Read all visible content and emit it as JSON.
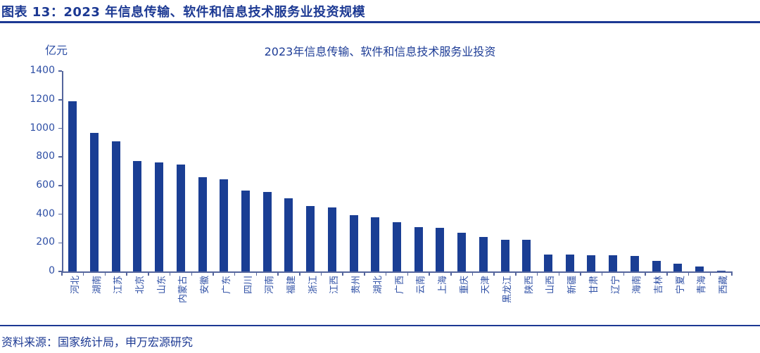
{
  "header": {
    "title": "图表 13：2023 年信息传输、软件和信息技术服务业投资规模"
  },
  "footer": {
    "source": "资料来源：国家统计局，申万宏源研究"
  },
  "colors": {
    "accent_navy": "#1c3993",
    "bar_fill": "#1a3e94",
    "axis_line": "#54659c",
    "tick_label": "#2e4fa5"
  },
  "chart_data": {
    "type": "bar",
    "title": "2023年信息传输、软件和信息技术服务业投资",
    "unit_label": "亿元",
    "xlabel": "",
    "ylabel": "亿元",
    "ylim": [
      0,
      1400
    ],
    "ytick_step": 200,
    "yticks": [
      0,
      200,
      400,
      600,
      800,
      1000,
      1200,
      1400
    ],
    "grid": false,
    "legend_position": "none",
    "categories": [
      "河北",
      "湖南",
      "江苏",
      "北京",
      "山东",
      "内蒙古",
      "安徽",
      "广东",
      "四川",
      "河南",
      "福建",
      "浙江",
      "江西",
      "贵州",
      "湖北",
      "广西",
      "云南",
      "上海",
      "重庆",
      "天津",
      "黑龙江",
      "陕西",
      "山西",
      "新疆",
      "甘肃",
      "辽宁",
      "海南",
      "吉林",
      "宁夏",
      "青海",
      "西藏"
    ],
    "values": [
      1190,
      970,
      910,
      770,
      760,
      745,
      660,
      645,
      565,
      555,
      510,
      458,
      448,
      395,
      380,
      345,
      310,
      305,
      270,
      240,
      220,
      220,
      120,
      118,
      114,
      112,
      110,
      72,
      52,
      32,
      6
    ]
  }
}
